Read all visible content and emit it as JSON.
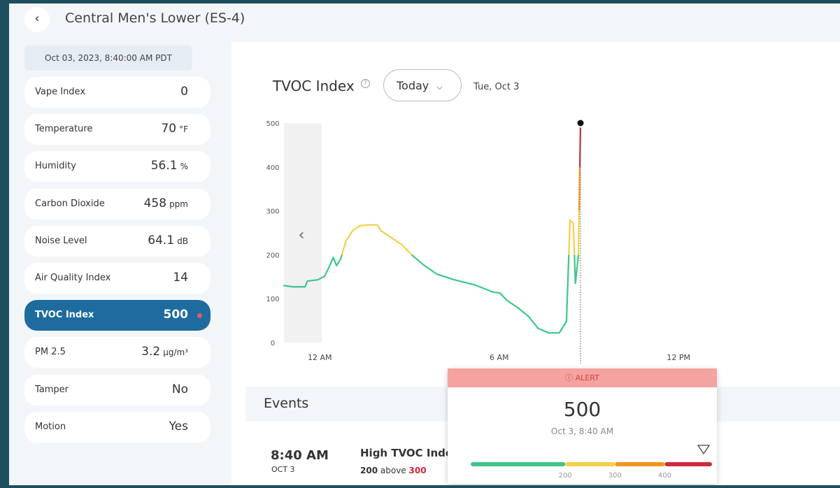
{
  "header": {
    "title": "Central Men's Lower (ES-4)"
  },
  "sidebar": {
    "timestamp": "Oct 03, 2023, 8:40:00 AM PDT",
    "rows": [
      {
        "label": "Vape Index",
        "value": 0,
        "unit": null
      },
      {
        "label": "Temperature",
        "value": 70,
        "unit": "°F"
      },
      {
        "label": "Humidity",
        "value": 56.1,
        "unit": "%"
      },
      {
        "label": "Carbon Dioxide",
        "value": 458,
        "unit": "ppm"
      },
      {
        "label": "Noise Level",
        "value": 64.1,
        "unit": "dB"
      },
      {
        "label": "Air Quality Index",
        "value": 14,
        "unit": null
      },
      {
        "label": "TVOC Index",
        "value": 500,
        "unit": null,
        "selected": true
      },
      {
        "label": "PM 2.5",
        "value": 3.2,
        "unit": "µg/m³"
      },
      {
        "label": "Tamper",
        "value": "No",
        "unit": null
      },
      {
        "label": "Motion",
        "value": "Yes",
        "unit": null
      }
    ]
  },
  "panel": {
    "title": "TVOC Index",
    "range": "Today",
    "date": "Tue, Oct 3"
  },
  "chart_data": {
    "type": "line",
    "x": [
      -1.22,
      -0.89,
      -0.49,
      -0.42,
      -0.07,
      0.16,
      0.33,
      0.45,
      0.56,
      0.7,
      0.87,
      1.1,
      1.34,
      1.62,
      1.92,
      2.04,
      2.39,
      2.74,
      3.09,
      3.45,
      3.91,
      4.5,
      5.2,
      5.79,
      6.02,
      6.26,
      6.61,
      6.96,
      7.31,
      7.66,
      8.01,
      8.25,
      8.37,
      8.48,
      8.55,
      8.65,
      8.72
    ],
    "series": [
      {
        "name": "TVOC Index",
        "values": [
          130,
          127,
          127,
          140,
          143,
          151,
          175,
          194,
          175,
          191,
          231,
          255,
          266,
          268,
          268,
          255,
          239,
          223,
          199,
          178,
          156,
          143,
          131,
          115,
          113,
          96,
          80,
          61,
          32,
          22,
          22,
          48,
          279,
          271,
          135,
          199,
          500
        ]
      }
    ],
    "xlim": [
      -1.2,
      17.4
    ],
    "xticks": [
      {
        "value": 0,
        "label": "12 AM"
      },
      {
        "value": 6,
        "label": "6 AM"
      },
      {
        "value": 12,
        "label": "12 PM"
      }
    ],
    "ylim": [
      0,
      500
    ],
    "yticks": [
      0,
      100,
      200,
      300,
      400,
      500
    ],
    "thresholds": [
      {
        "value": 200,
        "color": "#f3cf4c"
      },
      {
        "value": 300,
        "color": "#f2951f"
      },
      {
        "value": 400,
        "color": "#cf2a3e"
      }
    ],
    "base_color": "#3cc68a"
  },
  "tooltip": {
    "status": "ALERT",
    "value": 500,
    "time": "Oct 3, 8:40 AM",
    "scale_lim": [
      10,
      495
    ],
    "ticks": [
      200,
      300,
      400
    ]
  },
  "events": {
    "title": "Events",
    "items": [
      {
        "time": "8:40 AM",
        "date": "OCT 3",
        "name": "High TVOC Index",
        "value": 200,
        "relation": "above",
        "limit": 300
      }
    ]
  }
}
